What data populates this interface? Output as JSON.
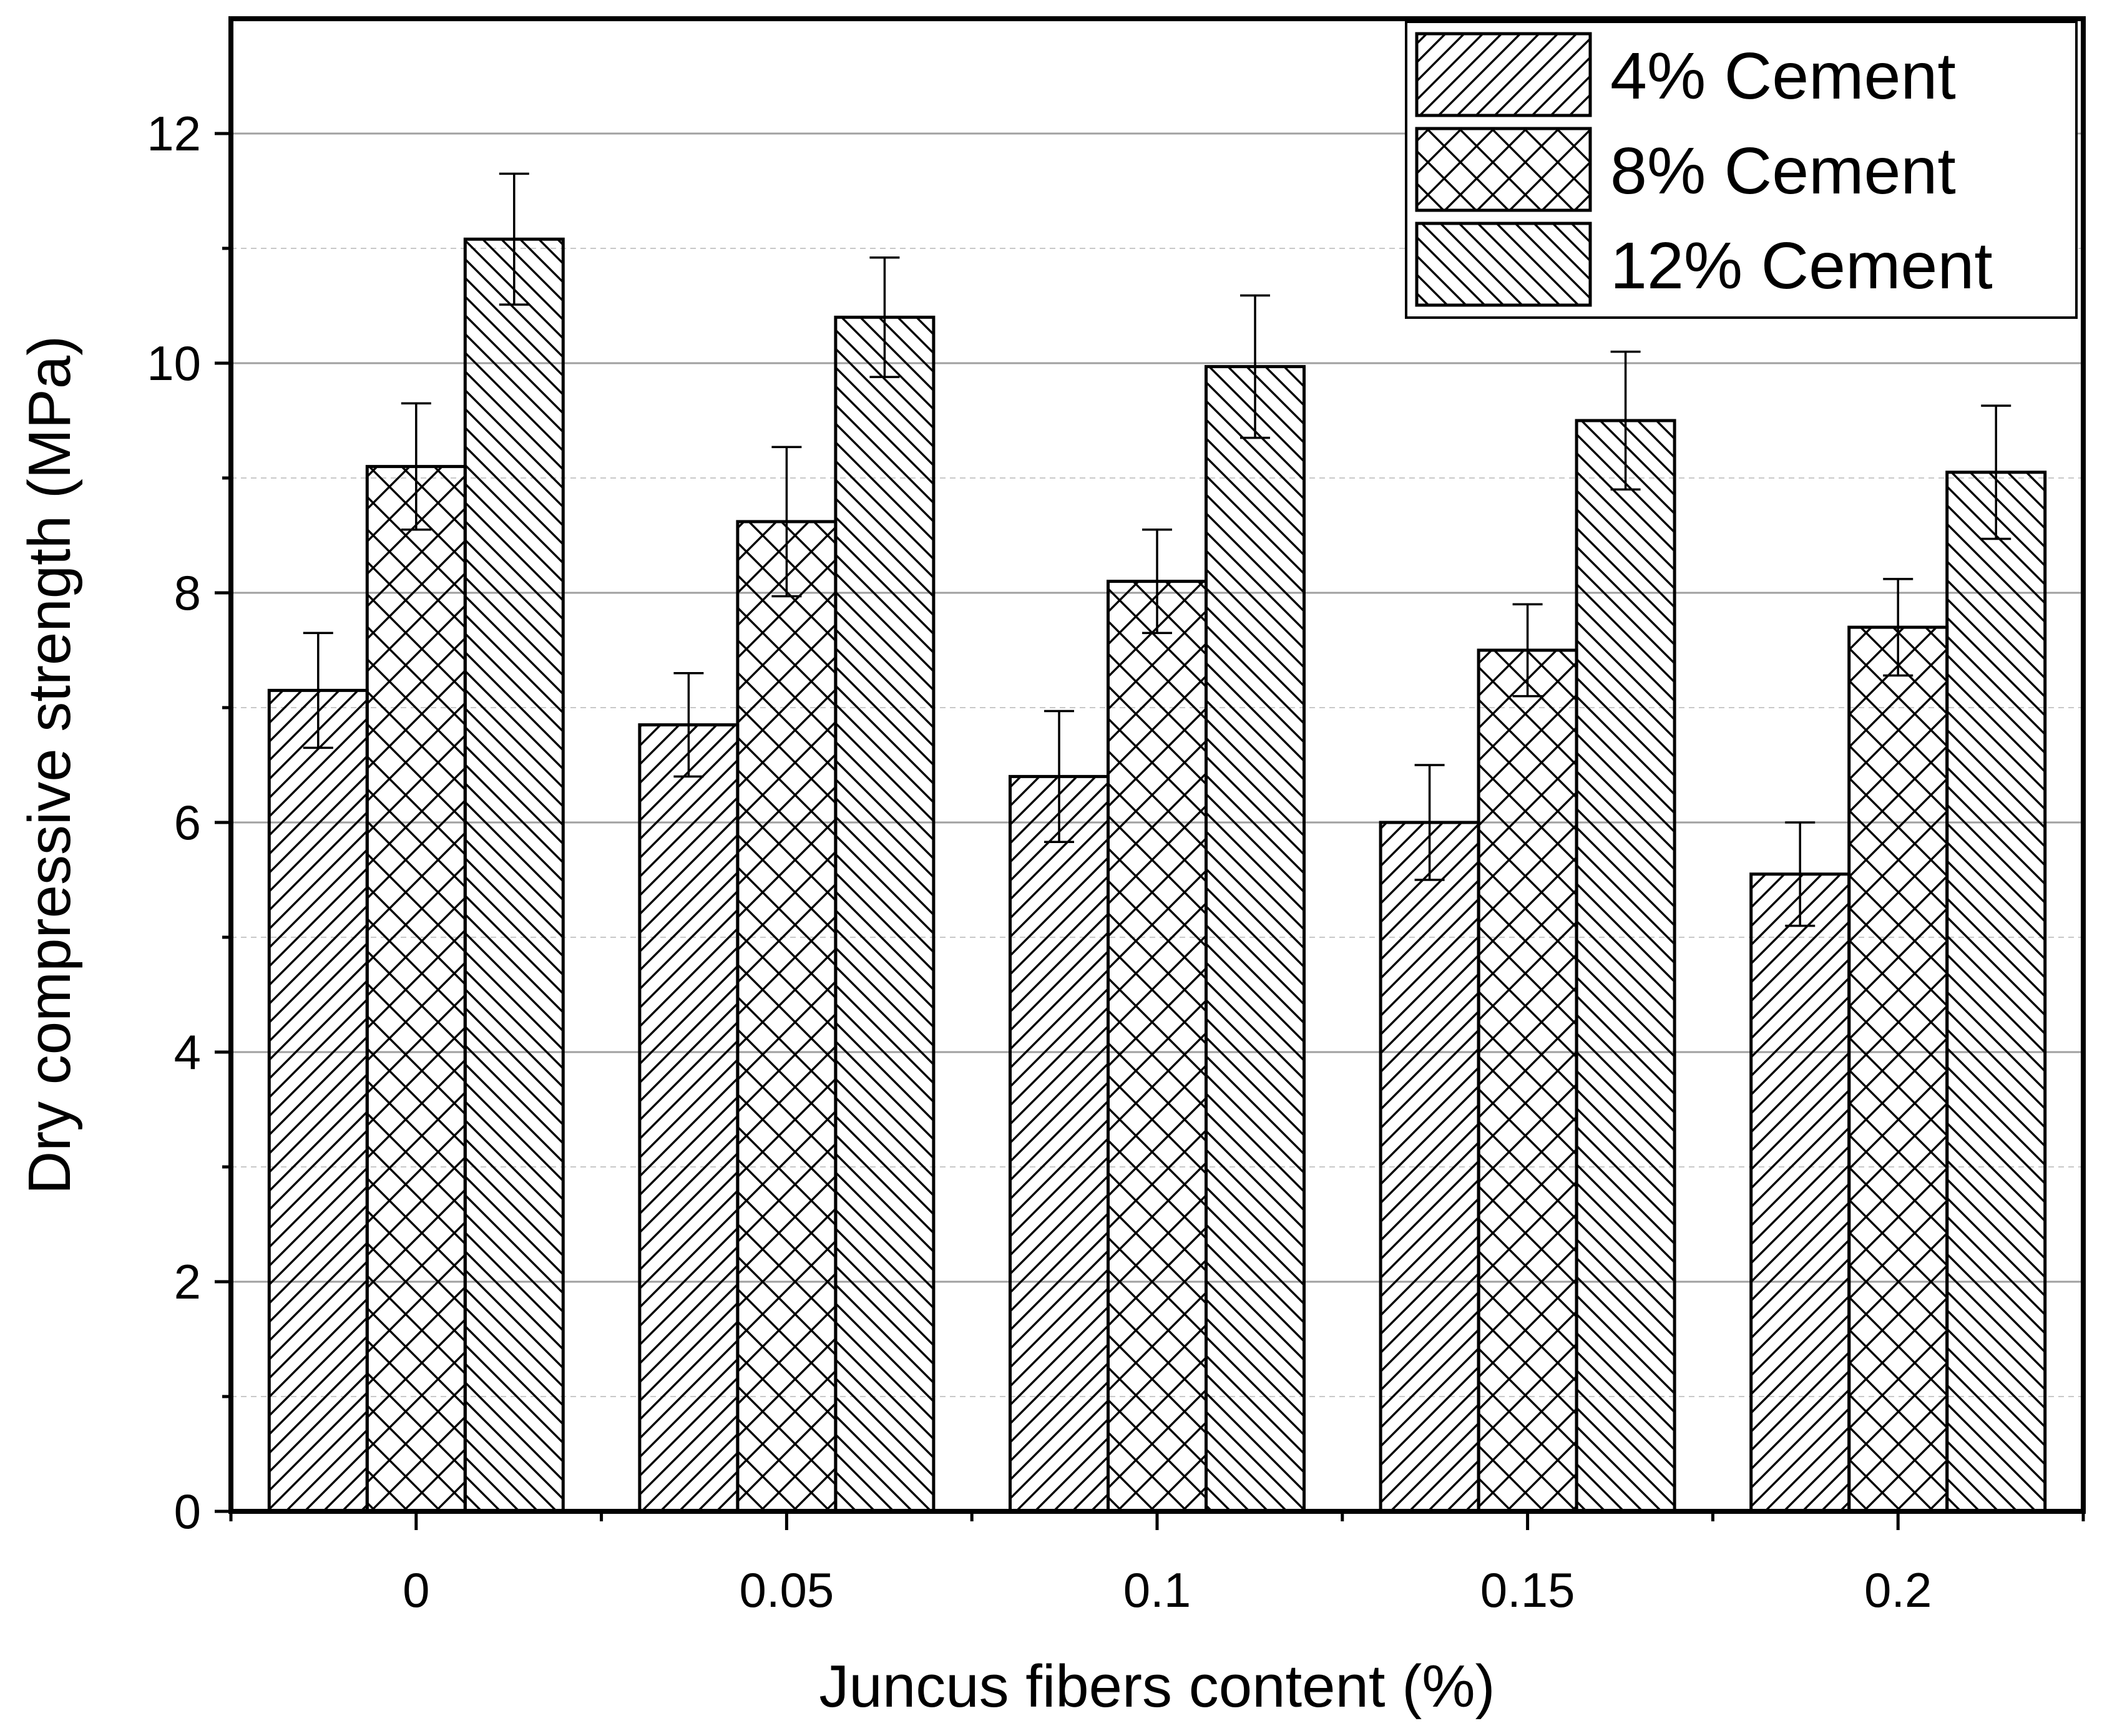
{
  "chart_data": {
    "type": "bar",
    "xlabel": "Juncus fibers content (%)",
    "ylabel": "Dry compressive strength (MPa)",
    "categories": [
      "0",
      "0.05",
      "0.1",
      "0.15",
      "0.2"
    ],
    "ylim": [
      0,
      13
    ],
    "yticks": [
      0,
      2,
      4,
      6,
      8,
      10,
      12
    ],
    "grid": "horizontal (solid major lines at labeled ticks, dashed minor lines between)",
    "legend_position": "top-right",
    "series": [
      {
        "name": "4% Cement",
        "pattern": "diagonal-right",
        "values": [
          7.15,
          6.85,
          6.4,
          6.0,
          5.55
        ],
        "errors": [
          0.5,
          0.45,
          0.57,
          0.5,
          0.45
        ]
      },
      {
        "name": "8% Cement",
        "pattern": "crosshatch",
        "values": [
          9.1,
          8.62,
          8.1,
          7.5,
          7.7
        ],
        "errors": [
          0.55,
          0.65,
          0.45,
          0.4,
          0.42
        ]
      },
      {
        "name": "12% Cement",
        "pattern": "diagonal-left",
        "values": [
          11.08,
          10.4,
          9.97,
          9.5,
          9.05
        ],
        "errors": [
          0.57,
          0.52,
          0.62,
          0.6,
          0.58
        ]
      }
    ]
  },
  "colors": {
    "bar_fill": "#ffffff",
    "hatch": "#000000",
    "grid_major": "#a0a0a0",
    "grid_minor": "#c8c8c8"
  }
}
